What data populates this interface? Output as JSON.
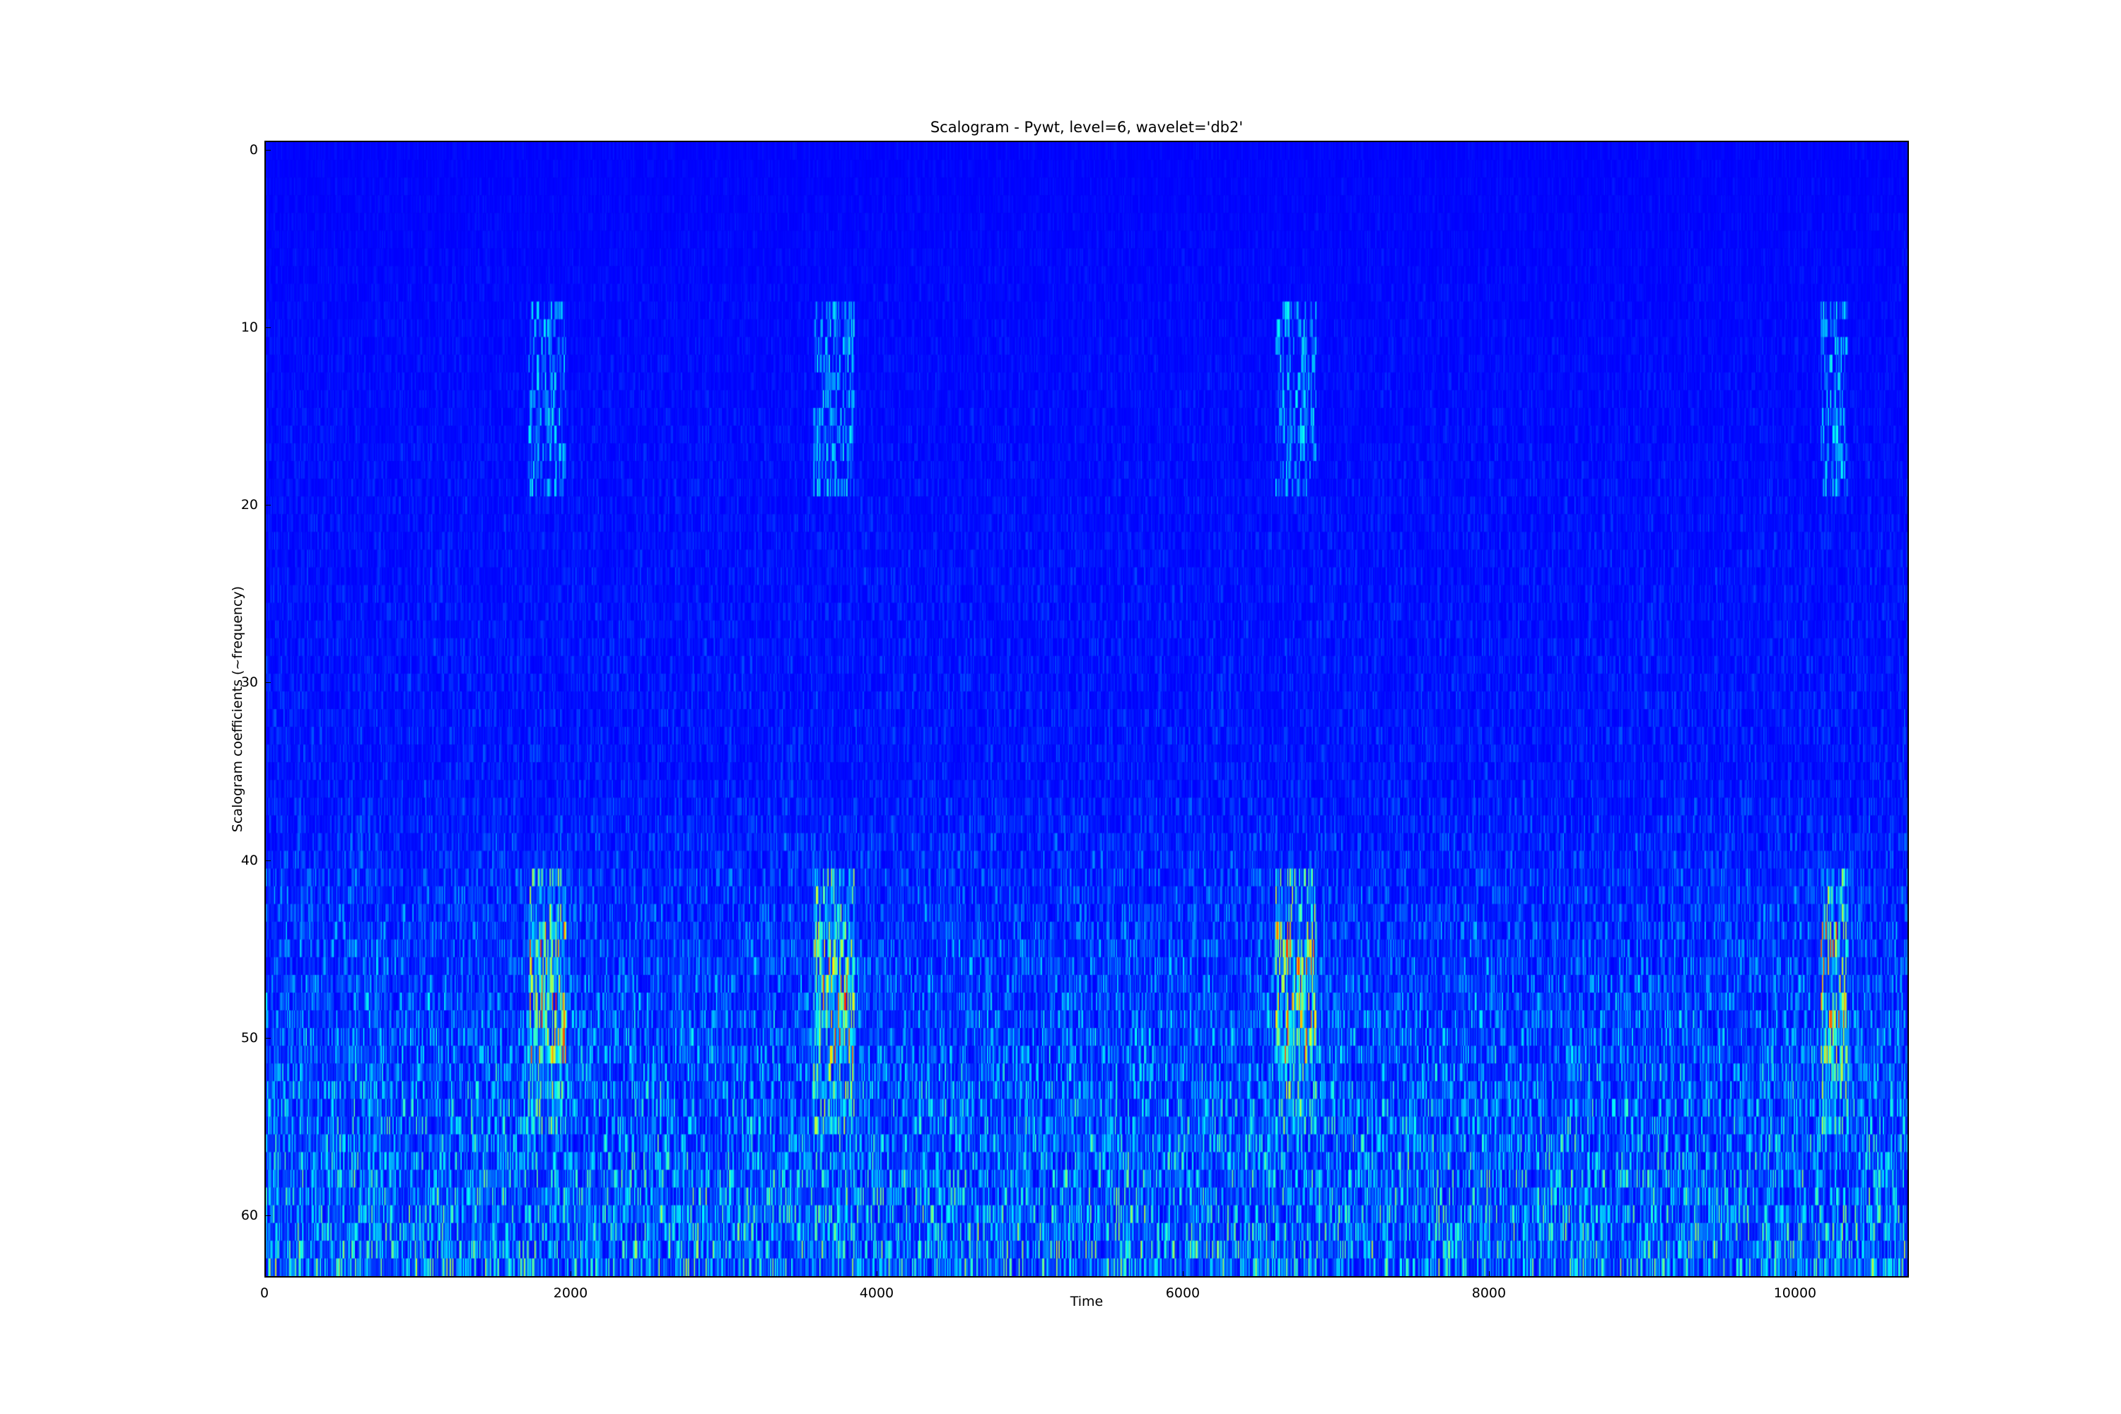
{
  "chart_data": {
    "type": "heatmap",
    "title": "Scalogram - Pywt, level=6, wavelet='db2'",
    "xlabel": "Time",
    "ylabel": "Scalogram coefficients (~frequency)",
    "colormap": "jet",
    "background_color": "#00007f",
    "xlim": [
      0,
      10744
    ],
    "ylim": [
      63.5,
      -0.5
    ],
    "y_inverted": true,
    "rows": 64,
    "xticks": [
      0,
      2000,
      4000,
      6000,
      8000,
      10000
    ],
    "yticks": [
      0,
      10,
      20,
      30,
      40,
      50,
      60
    ],
    "grid": false,
    "bursts": [
      {
        "t_start": 1718,
        "t_end": 1965
      },
      {
        "t_start": 3584,
        "t_end": 3852
      },
      {
        "t_start": 6606,
        "t_end": 6873
      },
      {
        "t_start": 10175,
        "t_end": 10350
      }
    ],
    "energy_bands": [
      {
        "row_start": 9,
        "row_end": 19,
        "intensity": 0.25
      },
      {
        "row_start": 41,
        "row_end": 55,
        "intensity": 0.5
      },
      {
        "row_start": 44,
        "row_end": 51,
        "intensity": 0.8
      }
    ],
    "background_noise": "increases toward higher coefficient rows (40-63)"
  }
}
